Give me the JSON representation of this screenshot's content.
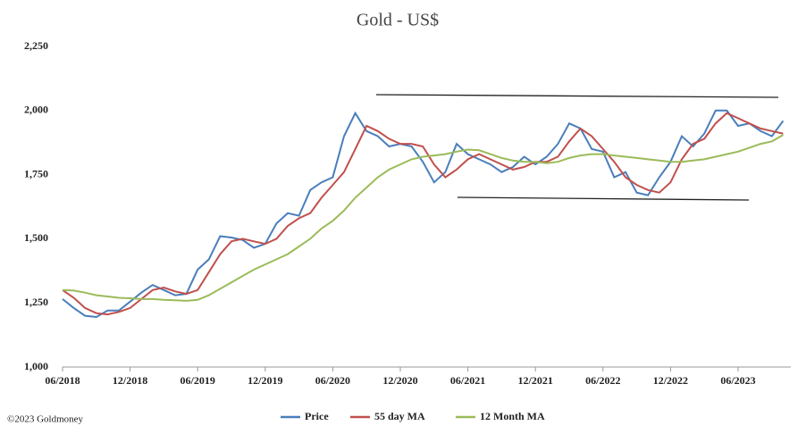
{
  "chart_data": {
    "type": "line",
    "title": "Gold - US$",
    "source": "©2023 Goldmoney",
    "categories": [
      "06/2018",
      null,
      null,
      null,
      null,
      null,
      "12/2018",
      null,
      null,
      null,
      null,
      null,
      "06/2019",
      null,
      null,
      null,
      null,
      null,
      "12/2019",
      null,
      null,
      null,
      null,
      null,
      "06/2020",
      null,
      null,
      null,
      null,
      null,
      "12/2020",
      null,
      null,
      null,
      null,
      null,
      "06/2021",
      null,
      null,
      null,
      null,
      null,
      "12/2021",
      null,
      null,
      null,
      null,
      null,
      "06/2022",
      null,
      null,
      null,
      null,
      null,
      "12/2022",
      null,
      null,
      null,
      null,
      null,
      "06/2023",
      null,
      null,
      null,
      null
    ],
    "series": [
      {
        "name": "Price",
        "color": "#4a7ebb",
        "values": [
          1265,
          1230,
          1200,
          1195,
          1220,
          1220,
          1255,
          1290,
          1320,
          1300,
          1280,
          1285,
          1380,
          1420,
          1510,
          1505,
          1495,
          1465,
          1480,
          1560,
          1600,
          1590,
          1690,
          1720,
          1740,
          1900,
          1990,
          1920,
          1900,
          1860,
          1870,
          1860,
          1800,
          1720,
          1760,
          1870,
          1830,
          1810,
          1790,
          1760,
          1780,
          1820,
          1790,
          1820,
          1870,
          1950,
          1930,
          1850,
          1840,
          1740,
          1760,
          1680,
          1670,
          1740,
          1800,
          1900,
          1860,
          1910,
          2000,
          2000,
          1940,
          1950,
          1920,
          1900,
          1960
        ]
      },
      {
        "name": "55 day MA",
        "color": "#c0504d",
        "values": [
          1300,
          1270,
          1230,
          1210,
          1205,
          1215,
          1230,
          1265,
          1300,
          1310,
          1295,
          1285,
          1300,
          1370,
          1440,
          1490,
          1500,
          1490,
          1480,
          1500,
          1550,
          1580,
          1600,
          1660,
          1710,
          1760,
          1850,
          1940,
          1920,
          1890,
          1870,
          1870,
          1860,
          1790,
          1740,
          1770,
          1810,
          1830,
          1810,
          1790,
          1770,
          1780,
          1800,
          1800,
          1820,
          1880,
          1930,
          1900,
          1850,
          1800,
          1740,
          1710,
          1690,
          1680,
          1720,
          1810,
          1870,
          1890,
          1950,
          1990,
          1970,
          1950,
          1930,
          1920,
          1910
        ]
      },
      {
        "name": "12 Month MA",
        "color": "#9bbb59",
        "values": [
          1300,
          1298,
          1290,
          1280,
          1275,
          1270,
          1268,
          1265,
          1265,
          1262,
          1260,
          1258,
          1262,
          1280,
          1305,
          1330,
          1355,
          1380,
          1400,
          1420,
          1440,
          1470,
          1500,
          1540,
          1570,
          1610,
          1660,
          1700,
          1740,
          1770,
          1790,
          1810,
          1820,
          1825,
          1830,
          1840,
          1848,
          1845,
          1830,
          1815,
          1805,
          1800,
          1800,
          1795,
          1800,
          1815,
          1825,
          1830,
          1830,
          1825,
          1820,
          1815,
          1810,
          1805,
          1800,
          1800,
          1805,
          1810,
          1820,
          1830,
          1840,
          1855,
          1870,
          1880,
          1905
        ]
      }
    ],
    "ylim": [
      1000,
      2250
    ],
    "yticks": [
      {
        "value": 1000,
        "label": "1,000"
      },
      {
        "value": 1250,
        "label": "1,250"
      },
      {
        "value": 1500,
        "label": "1,500"
      },
      {
        "value": 1750,
        "label": "1,750"
      },
      {
        "value": 2000,
        "label": "2,000"
      },
      {
        "value": 2250,
        "label": "2,250"
      }
    ],
    "grid": false,
    "legend": "bottom"
  }
}
